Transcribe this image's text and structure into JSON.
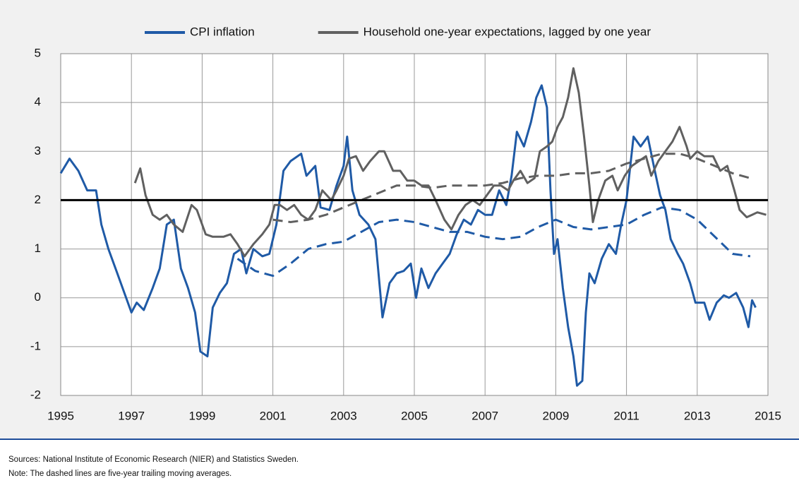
{
  "chart_data": {
    "type": "line",
    "xlim": [
      1995,
      2015
    ],
    "xticks": [
      1995,
      1997,
      1999,
      2001,
      2003,
      2005,
      2007,
      2009,
      2011,
      2013,
      2015
    ],
    "ylim": [
      -2,
      5
    ],
    "yticks": [
      -2,
      -1,
      0,
      1,
      2,
      3,
      4,
      5
    ],
    "grid": true,
    "reference_line": 2,
    "legend": "top",
    "series": [
      {
        "name": "CPI inflation",
        "color": "#1f5aa6",
        "dashed": false,
        "x": [
          1995.0,
          1995.25,
          1995.5,
          1995.75,
          1996.0,
          1996.15,
          1996.35,
          1996.6,
          1996.85,
          1997.0,
          1997.15,
          1997.35,
          1997.6,
          1997.8,
          1998.0,
          1998.2,
          1998.4,
          1998.6,
          1998.8,
          1998.95,
          1999.15,
          1999.3,
          1999.5,
          1999.7,
          1999.9,
          2000.1,
          2000.25,
          2000.45,
          2000.7,
          2000.9,
          2001.1,
          2001.3,
          2001.5,
          2001.8,
          2001.95,
          2002.2,
          2002.35,
          2002.6,
          2002.8,
          2003.0,
          2003.1,
          2003.25,
          2003.45,
          2003.7,
          2003.9,
          2004.1,
          2004.3,
          2004.5,
          2004.7,
          2004.9,
          2005.05,
          2005.2,
          2005.4,
          2005.6,
          2005.8,
          2006.0,
          2006.2,
          2006.4,
          2006.6,
          2006.8,
          2007.0,
          2007.2,
          2007.4,
          2007.6,
          2007.75,
          2007.9,
          2008.1,
          2008.3,
          2008.45,
          2008.6,
          2008.75,
          2008.85,
          2008.95,
          2009.05,
          2009.2,
          2009.35,
          2009.5,
          2009.6,
          2009.75,
          2009.85,
          2009.95,
          2010.1,
          2010.3,
          2010.5,
          2010.7,
          2010.85,
          2011.0,
          2011.2,
          2011.4,
          2011.6,
          2011.8,
          2011.95,
          2012.1,
          2012.25,
          2012.45,
          2012.6,
          2012.8,
          2012.95,
          2013.2,
          2013.35,
          2013.55,
          2013.75,
          2013.9,
          2014.1,
          2014.3,
          2014.45,
          2014.55,
          2014.65
        ],
        "values": [
          2.55,
          2.85,
          2.6,
          2.2,
          2.2,
          1.5,
          1.0,
          0.5,
          0.0,
          -0.3,
          -0.1,
          -0.25,
          0.2,
          0.6,
          1.5,
          1.6,
          0.6,
          0.2,
          -0.3,
          -1.1,
          -1.2,
          -0.2,
          0.1,
          0.3,
          0.9,
          1.0,
          0.5,
          1.0,
          0.85,
          0.9,
          1.5,
          2.6,
          2.8,
          2.95,
          2.5,
          2.7,
          1.85,
          1.8,
          2.3,
          2.7,
          3.3,
          2.2,
          1.7,
          1.5,
          1.2,
          -0.4,
          0.3,
          0.5,
          0.55,
          0.7,
          0.0,
          0.6,
          0.2,
          0.5,
          0.7,
          0.9,
          1.3,
          1.6,
          1.5,
          1.8,
          1.7,
          1.7,
          2.2,
          1.9,
          2.5,
          3.4,
          3.1,
          3.6,
          4.1,
          4.35,
          3.9,
          2.2,
          0.9,
          1.2,
          0.2,
          -0.6,
          -1.2,
          -1.8,
          -1.7,
          -0.3,
          0.5,
          0.3,
          0.8,
          1.1,
          0.9,
          1.5,
          2.0,
          3.3,
          3.1,
          3.3,
          2.6,
          2.1,
          1.8,
          1.2,
          0.9,
          0.7,
          0.3,
          -0.1,
          -0.1,
          -0.45,
          -0.1,
          0.05,
          0.0,
          0.1,
          -0.2,
          -0.6,
          -0.05,
          -0.2
        ]
      },
      {
        "name": "Household one-year expectations, lagged by one year",
        "color": "#606060",
        "dashed": false,
        "x": [
          1997.1,
          1997.25,
          1997.4,
          1997.6,
          1997.8,
          1998.0,
          1998.2,
          1998.45,
          1998.7,
          1998.85,
          1999.1,
          1999.3,
          1999.6,
          1999.8,
          2000.0,
          2000.2,
          2000.45,
          2000.7,
          2000.9,
          2001.05,
          2001.2,
          2001.4,
          2001.6,
          2001.8,
          2002.0,
          2002.2,
          2002.4,
          2002.65,
          2002.8,
          2003.0,
          2003.15,
          2003.35,
          2003.55,
          2003.75,
          2004.0,
          2004.15,
          2004.4,
          2004.6,
          2004.8,
          2005.0,
          2005.2,
          2005.4,
          2005.6,
          2005.85,
          2006.05,
          2006.25,
          2006.45,
          2006.65,
          2006.85,
          2007.05,
          2007.25,
          2007.45,
          2007.65,
          2007.8,
          2008.0,
          2008.2,
          2008.4,
          2008.55,
          2008.75,
          2008.9,
          2009.05,
          2009.2,
          2009.35,
          2009.5,
          2009.65,
          2009.8,
          2009.95,
          2010.05,
          2010.2,
          2010.4,
          2010.6,
          2010.75,
          2010.95,
          2011.15,
          2011.35,
          2011.55,
          2011.7,
          2011.9,
          2012.1,
          2012.3,
          2012.5,
          2012.7,
          2012.8,
          2013.0,
          2013.2,
          2013.45,
          2013.65,
          2013.85,
          2014.05,
          2014.2,
          2014.4,
          2014.55,
          2014.7,
          2014.95
        ],
        "values": [
          2.35,
          2.65,
          2.1,
          1.7,
          1.6,
          1.7,
          1.5,
          1.35,
          1.9,
          1.8,
          1.3,
          1.25,
          1.25,
          1.3,
          1.1,
          0.85,
          1.1,
          1.3,
          1.5,
          1.9,
          1.9,
          1.8,
          1.9,
          1.7,
          1.6,
          1.8,
          2.2,
          2.0,
          2.2,
          2.5,
          2.85,
          2.9,
          2.6,
          2.8,
          3.0,
          3.0,
          2.6,
          2.6,
          2.4,
          2.4,
          2.3,
          2.3,
          2.0,
          1.6,
          1.4,
          1.7,
          1.9,
          2.0,
          1.9,
          2.1,
          2.3,
          2.3,
          2.2,
          2.4,
          2.6,
          2.35,
          2.45,
          3.0,
          3.1,
          3.2,
          3.5,
          3.7,
          4.1,
          4.7,
          4.2,
          3.3,
          2.3,
          1.55,
          2.0,
          2.4,
          2.5,
          2.2,
          2.5,
          2.7,
          2.8,
          2.9,
          2.5,
          2.8,
          3.0,
          3.2,
          3.5,
          3.1,
          2.85,
          3.0,
          2.9,
          2.9,
          2.6,
          2.7,
          2.2,
          1.8,
          1.65,
          1.7,
          1.75,
          1.7
        ]
      },
      {
        "color": "#1f5aa6",
        "dashed": true,
        "x": [
          2000.0,
          2000.5,
          2001.0,
          2001.5,
          2002.0,
          2002.5,
          2003.0,
          2003.5,
          2004.0,
          2004.5,
          2005.0,
          2005.5,
          2006.0,
          2006.5,
          2007.0,
          2007.5,
          2008.0,
          2008.5,
          2009.0,
          2009.5,
          2010.0,
          2010.5,
          2011.0,
          2011.5,
          2012.0,
          2012.5,
          2013.0,
          2013.5,
          2014.0,
          2014.5
        ],
        "values": [
          0.8,
          0.55,
          0.45,
          0.7,
          1.0,
          1.1,
          1.15,
          1.35,
          1.55,
          1.6,
          1.55,
          1.45,
          1.35,
          1.35,
          1.25,
          1.2,
          1.25,
          1.45,
          1.6,
          1.45,
          1.4,
          1.45,
          1.5,
          1.7,
          1.85,
          1.8,
          1.6,
          1.25,
          0.9,
          0.85
        ]
      },
      {
        "color": "#606060",
        "dashed": true,
        "x": [
          2001.0,
          2001.5,
          2002.0,
          2002.5,
          2003.0,
          2003.5,
          2004.0,
          2004.5,
          2005.0,
          2005.5,
          2006.0,
          2006.5,
          2007.0,
          2007.5,
          2008.0,
          2008.5,
          2009.0,
          2009.5,
          2010.0,
          2010.5,
          2011.0,
          2011.5,
          2012.0,
          2012.5,
          2013.0,
          2013.5,
          2014.0,
          2014.5
        ],
        "values": [
          1.6,
          1.55,
          1.6,
          1.7,
          1.85,
          2.0,
          2.15,
          2.3,
          2.3,
          2.25,
          2.3,
          2.3,
          2.3,
          2.35,
          2.45,
          2.5,
          2.5,
          2.55,
          2.55,
          2.6,
          2.75,
          2.85,
          2.95,
          2.95,
          2.85,
          2.7,
          2.55,
          2.45
        ]
      }
    ]
  },
  "notes": [
    "Sources: National Institute of Economic Research (NIER) and Statistics Sweden.",
    "Note: The dashed lines are five-year trailing moving averages."
  ]
}
